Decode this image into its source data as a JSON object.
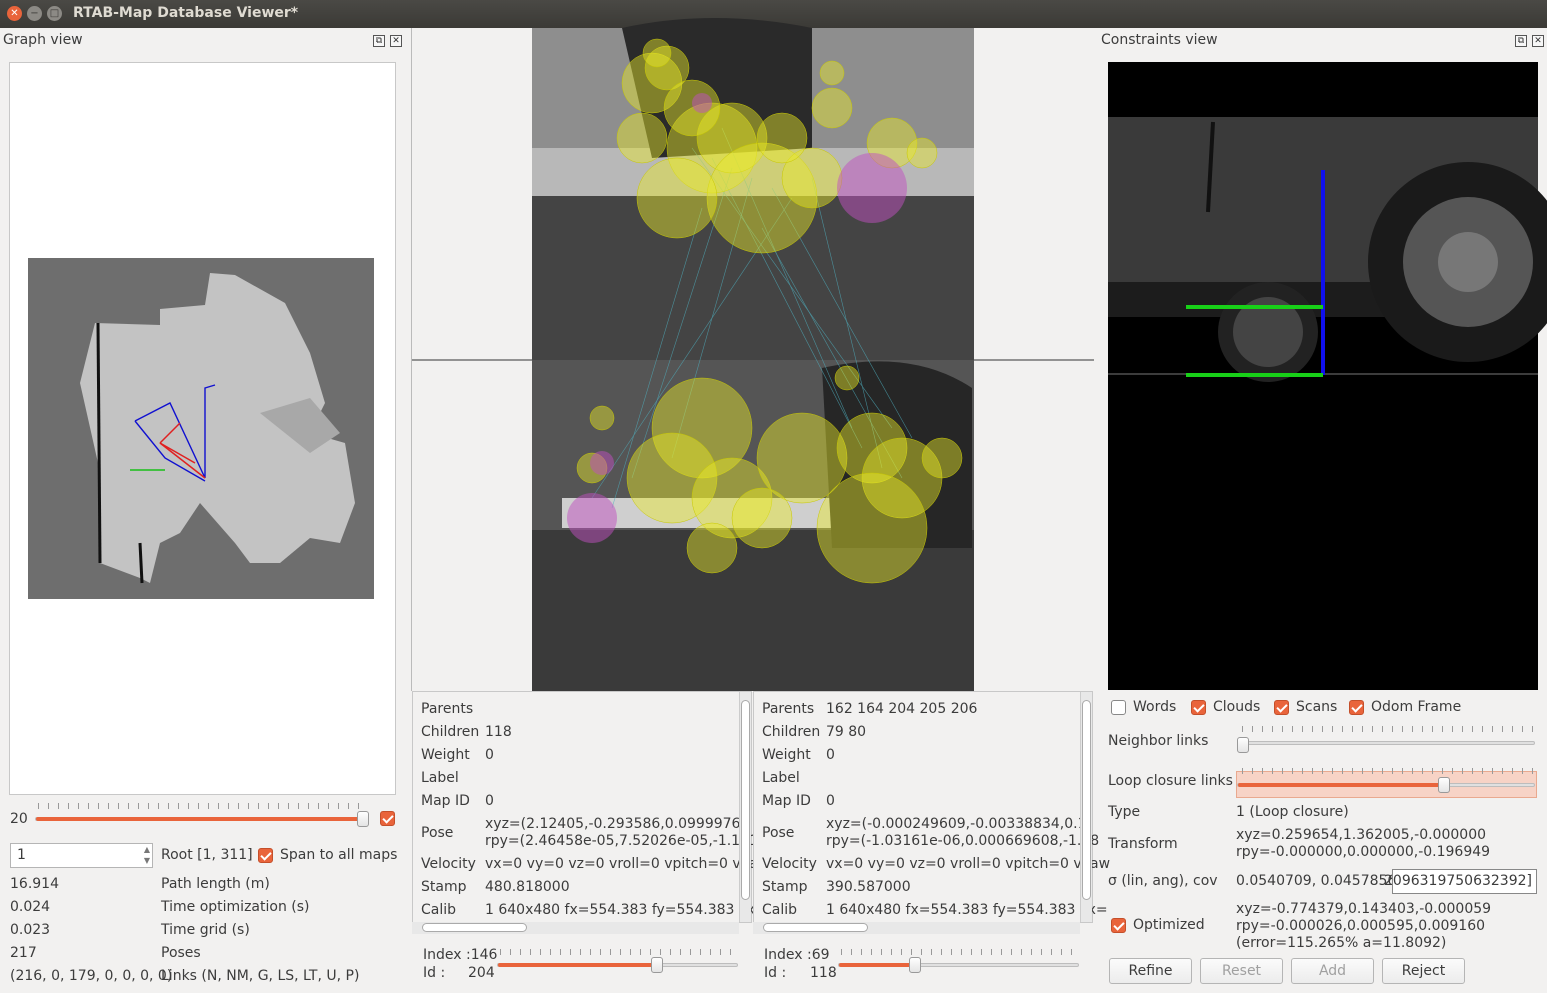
{
  "window": {
    "title": "RTAB-Map Database Viewer*"
  },
  "graph_view": {
    "title": "Graph view",
    "slider_value": "20",
    "root_input": "1",
    "root_label": "Root [1, 311]",
    "span_label": "Span to all maps",
    "stats": [
      {
        "value": "16.914",
        "label": "Path length (m)"
      },
      {
        "value": "0.024",
        "label": "Time optimization (s)"
      },
      {
        "value": "0.023",
        "label": "Time grid (s)"
      },
      {
        "value": "217",
        "label": "Poses"
      },
      {
        "value": "(216, 0, 179, 0, 0, 0, 0)",
        "label": "Links (N, NM, G, LS, LT, U, P)"
      }
    ]
  },
  "left_info": {
    "parents_label": "Parents",
    "parents": "",
    "children_label": "Children",
    "children": "118",
    "weight_label": "Weight",
    "weight": "0",
    "label_label": "Label",
    "label": "",
    "mapid_label": "Map ID",
    "mapid": "0",
    "pose_label": "Pose",
    "pose_xyz": "xyz=(2.12405,-0.293586,0.0999976)",
    "pose_rpy": "rpy=(2.46458e-05,7.52026e-05,-1.161",
    "velocity_label": "Velocity",
    "velocity": "vx=0 vy=0 vz=0 vroll=0 vpitch=0 vyaw",
    "stamp_label": "Stamp",
    "stamp": "480.818000",
    "calib_label": "Calib",
    "calib": "1 640x480 fx=554.383 fy=554.383 cx=",
    "index_label": "Index :",
    "index": "146",
    "id_label": "Id :",
    "id": "204",
    "slider_fraction": 0.65
  },
  "right_info": {
    "parents_label": "Parents",
    "parents": "162 164 204 205 206",
    "children_label": "Children",
    "children": "79 80",
    "weight_label": "Weight",
    "weight": "0",
    "label_label": "Label",
    "label": "",
    "mapid_label": "Map ID",
    "mapid": "0",
    "pose_label": "Pose",
    "pose_xyz": "xyz=(-0.000249609,-0.00338834,0.1)",
    "pose_rpy": "rpy=(-1.03161e-06,0.000669608,-1.38",
    "velocity_label": "Velocity",
    "velocity": "vx=0 vy=0 vz=0 vroll=0 vpitch=0 vyaw",
    "stamp_label": "Stamp",
    "stamp": "390.587000",
    "calib_label": "Calib",
    "calib": "1 640x480 fx=554.383 fy=554.383 cx=",
    "index_label": "Index :",
    "index": "69",
    "id_label": "Id :",
    "id": "118",
    "slider_fraction": 0.32
  },
  "constraints_view": {
    "title": "Constraints view",
    "options": {
      "words": "Words",
      "clouds": "Clouds",
      "scans": "Scans",
      "odom": "Odom Frame"
    },
    "neighbor_links": "Neighbor links",
    "loop_closure_links": "Loop closure links",
    "type_label": "Type",
    "type": "1 (Loop closure)",
    "transform_label": "Transform",
    "transform_xyz": "xyz=0.259654,1.362005,-0.000000",
    "transform_rpy": "rpy=-0.000000,0.000000,-0.196949",
    "sigma_label": "σ (lin, ang), cov",
    "sigma": "0.0540709, 0.0457856",
    "cov": "2096319750632392]",
    "optimized_label": "Optimized",
    "optimized_xyz": "xyz=-0.774379,0.143403,-0.000059",
    "optimized_rpy": "rpy=-0.000026,0.000595,0.009160",
    "optimized_error": "(error=115.265% a=11.8092)",
    "buttons": {
      "refine": "Refine",
      "reset": "Reset",
      "add": "Add",
      "reject": "Reject"
    },
    "neighbor_fraction": 0.0,
    "loop_fraction": 0.7
  },
  "colors": {
    "accent": "#e9643b",
    "titlebar": "#3b3a36"
  }
}
